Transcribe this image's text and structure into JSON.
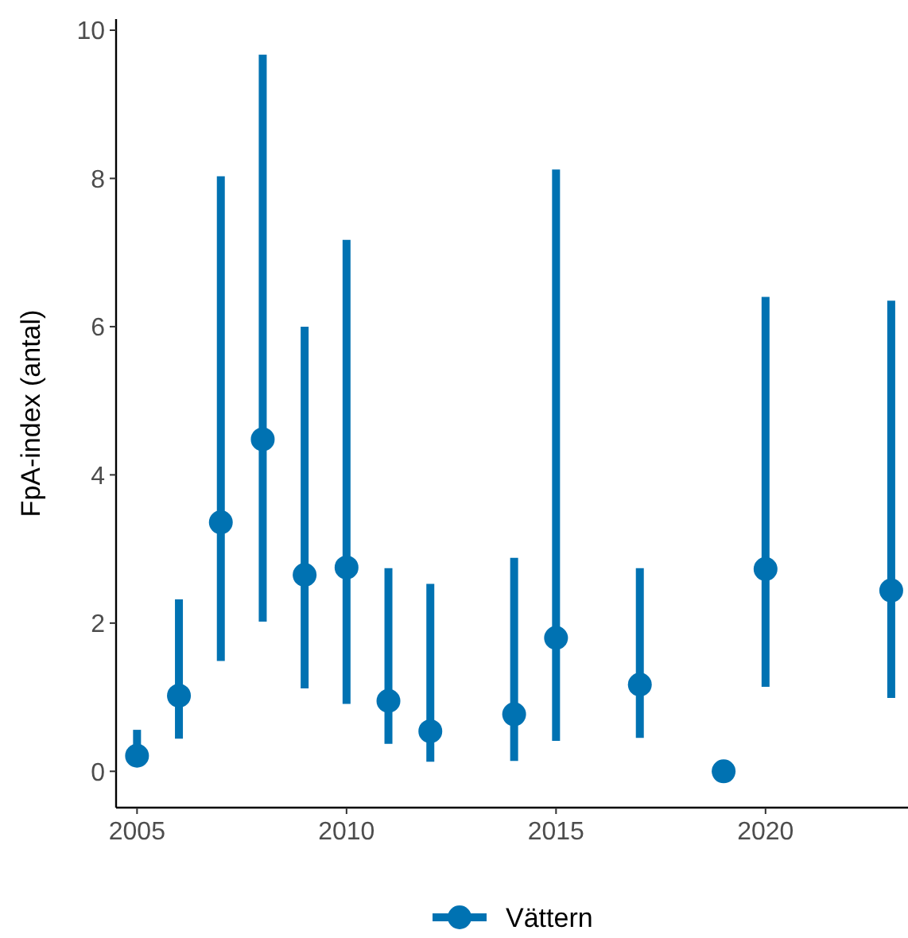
{
  "chart_data": {
    "type": "scatter",
    "ylabel": "FpA-index (antal)",
    "x": [
      2005,
      2006,
      2007,
      2008,
      2009,
      2010,
      2011,
      2012,
      2014,
      2015,
      2017,
      2019,
      2020,
      2023
    ],
    "series": [
      {
        "name": "Vättern",
        "color": "#0072b2",
        "values": [
          0.21,
          1.02,
          3.36,
          4.48,
          2.65,
          2.75,
          0.95,
          0.54,
          0.77,
          1.8,
          1.17,
          0,
          2.73,
          2.44
        ],
        "errors": [
          [
            0.12,
            0.56
          ],
          [
            0.44,
            2.32
          ],
          [
            1.49,
            8.03
          ],
          [
            2.02,
            9.67
          ],
          [
            1.12,
            6.0
          ],
          [
            0.91,
            7.17
          ],
          [
            0.37,
            2.74
          ],
          [
            0.13,
            2.53
          ],
          [
            0.14,
            2.88
          ],
          [
            0.41,
            8.12
          ],
          [
            0.45,
            2.74
          ],
          null,
          [
            1.14,
            6.4
          ],
          [
            0.99,
            6.35
          ]
        ]
      }
    ],
    "xlim": [
      2004.5,
      2023.4
    ],
    "xticks": [
      2005,
      2010,
      2015,
      2020
    ],
    "ylim": [
      -0.49,
      10.15
    ],
    "yticks": [
      0,
      2,
      4,
      6,
      8,
      10
    ],
    "grid": false,
    "legend": "bottom",
    "marker": "circle"
  }
}
